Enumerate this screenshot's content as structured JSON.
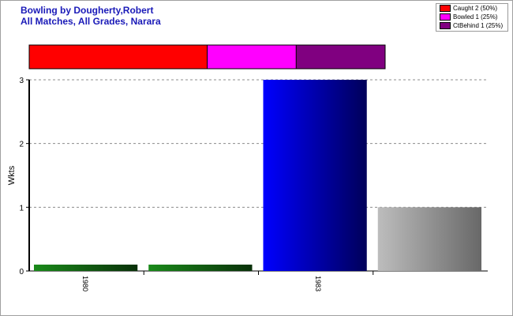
{
  "header": {
    "title_line1": "Bowling by Dougherty,Robert",
    "title_line2": "All Matches, All Grades, Narara"
  },
  "legend": {
    "items": [
      {
        "label": "Caught 2 (50%)",
        "color": "#ff0000"
      },
      {
        "label": "Bowled 1 (25%)",
        "color": "#ff00ff"
      },
      {
        "label": "CtBehind 1 (25%)",
        "color": "#800080"
      }
    ]
  },
  "chart_data": [
    {
      "type": "bar",
      "stacked": true,
      "orientation": "horizontal",
      "description": "dismissal breakdown bar",
      "series": [
        {
          "name": "Caught",
          "values": [
            2
          ],
          "color": "#ff0000"
        },
        {
          "name": "Bowled",
          "values": [
            1
          ],
          "color": "#ff00ff"
        },
        {
          "name": "CtBehind",
          "values": [
            1
          ],
          "color": "#800080"
        }
      ]
    },
    {
      "type": "bar",
      "ylabel": "Wkts",
      "ylim": [
        0,
        3
      ],
      "yticks": [
        "0",
        "1",
        "2",
        "3"
      ],
      "grid": true,
      "x_labels": [
        "1980",
        "1983"
      ],
      "values": [
        0.1,
        0.1,
        3,
        1
      ],
      "colors": [
        "#1a8a1a",
        "#1a8a1a",
        "#0000ff",
        "#bdbdbd"
      ]
    }
  ]
}
